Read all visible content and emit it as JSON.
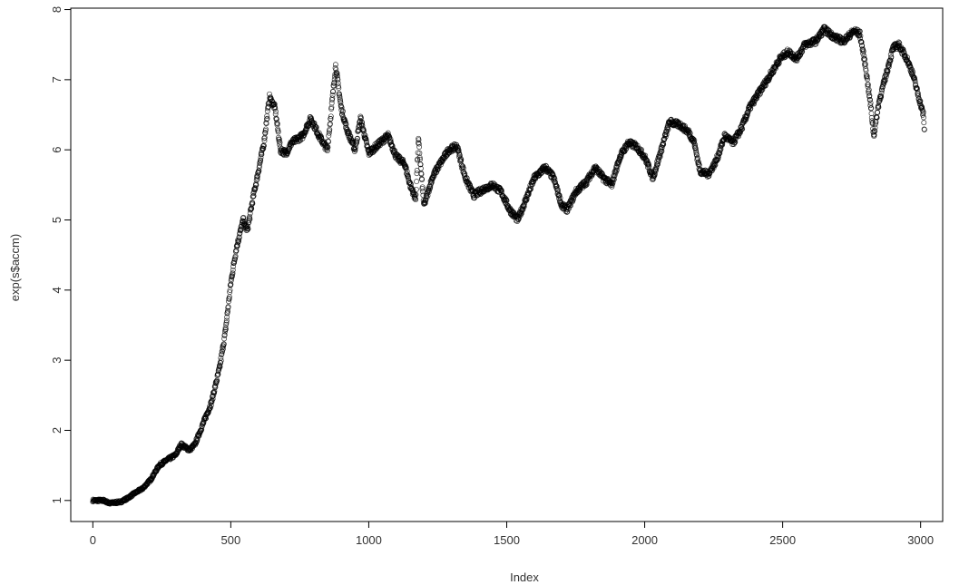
{
  "chart_data": {
    "type": "scatter",
    "xlabel": "Index",
    "ylabel": "exp(s$accm)",
    "xlim": [
      -80,
      3080
    ],
    "ylim": [
      0.7,
      8.02
    ],
    "x_ticks": [
      0,
      500,
      1000,
      1500,
      2000,
      2500,
      3000
    ],
    "x_tick_labels": [
      "0",
      "500",
      "1000",
      "1500",
      "2000",
      "2500",
      "3000"
    ],
    "y_ticks": [
      1,
      2,
      3,
      4,
      5,
      6,
      7,
      8
    ],
    "y_tick_labels": [
      "1",
      "2",
      "3",
      "4",
      "5",
      "6",
      "7",
      "8"
    ],
    "marker": "open-circle",
    "grid": false,
    "n_points": 3015,
    "series": [
      {
        "values": [
          [
            0,
            1.0
          ],
          [
            40,
            1.0
          ],
          [
            60,
            0.96
          ],
          [
            100,
            0.98
          ],
          [
            125,
            1.03
          ],
          [
            150,
            1.1
          ],
          [
            180,
            1.17
          ],
          [
            210,
            1.3
          ],
          [
            240,
            1.5
          ],
          [
            270,
            1.58
          ],
          [
            300,
            1.65
          ],
          [
            320,
            1.8
          ],
          [
            350,
            1.72
          ],
          [
            370,
            1.8
          ],
          [
            400,
            2.1
          ],
          [
            430,
            2.4
          ],
          [
            460,
            2.9
          ],
          [
            480,
            3.4
          ],
          [
            500,
            4.1
          ],
          [
            520,
            4.6
          ],
          [
            545,
            5.0
          ],
          [
            560,
            4.85
          ],
          [
            580,
            5.3
          ],
          [
            600,
            5.7
          ],
          [
            620,
            6.1
          ],
          [
            640,
            6.75
          ],
          [
            660,
            6.6
          ],
          [
            680,
            6.0
          ],
          [
            700,
            5.95
          ],
          [
            720,
            6.1
          ],
          [
            760,
            6.2
          ],
          [
            790,
            6.45
          ],
          [
            820,
            6.2
          ],
          [
            850,
            6.0
          ],
          [
            870,
            6.8
          ],
          [
            880,
            7.2
          ],
          [
            900,
            6.6
          ],
          [
            920,
            6.3
          ],
          [
            950,
            6.0
          ],
          [
            970,
            6.45
          ],
          [
            1000,
            5.95
          ],
          [
            1040,
            6.1
          ],
          [
            1070,
            6.2
          ],
          [
            1100,
            5.9
          ],
          [
            1130,
            5.8
          ],
          [
            1150,
            5.5
          ],
          [
            1170,
            5.3
          ],
          [
            1180,
            6.15
          ],
          [
            1200,
            5.2
          ],
          [
            1230,
            5.6
          ],
          [
            1250,
            5.75
          ],
          [
            1290,
            6.0
          ],
          [
            1320,
            6.05
          ],
          [
            1350,
            5.6
          ],
          [
            1380,
            5.35
          ],
          [
            1420,
            5.45
          ],
          [
            1450,
            5.5
          ],
          [
            1480,
            5.4
          ],
          [
            1510,
            5.15
          ],
          [
            1540,
            5.0
          ],
          [
            1570,
            5.3
          ],
          [
            1600,
            5.6
          ],
          [
            1640,
            5.75
          ],
          [
            1670,
            5.6
          ],
          [
            1700,
            5.2
          ],
          [
            1720,
            5.15
          ],
          [
            1750,
            5.4
          ],
          [
            1790,
            5.55
          ],
          [
            1820,
            5.75
          ],
          [
            1850,
            5.6
          ],
          [
            1880,
            5.5
          ],
          [
            1910,
            5.9
          ],
          [
            1940,
            6.1
          ],
          [
            1970,
            6.05
          ],
          [
            2000,
            5.9
          ],
          [
            2030,
            5.6
          ],
          [
            2060,
            6.0
          ],
          [
            2090,
            6.4
          ],
          [
            2130,
            6.35
          ],
          [
            2160,
            6.25
          ],
          [
            2180,
            6.1
          ],
          [
            2200,
            5.7
          ],
          [
            2230,
            5.65
          ],
          [
            2260,
            5.85
          ],
          [
            2290,
            6.2
          ],
          [
            2320,
            6.1
          ],
          [
            2350,
            6.3
          ],
          [
            2380,
            6.6
          ],
          [
            2420,
            6.85
          ],
          [
            2460,
            7.1
          ],
          [
            2490,
            7.3
          ],
          [
            2520,
            7.4
          ],
          [
            2550,
            7.3
          ],
          [
            2580,
            7.5
          ],
          [
            2620,
            7.55
          ],
          [
            2650,
            7.72
          ],
          [
            2690,
            7.6
          ],
          [
            2720,
            7.55
          ],
          [
            2760,
            7.7
          ],
          [
            2780,
            7.65
          ],
          [
            2800,
            7.2
          ],
          [
            2820,
            6.6
          ],
          [
            2830,
            6.2
          ],
          [
            2850,
            6.7
          ],
          [
            2870,
            7.0
          ],
          [
            2900,
            7.45
          ],
          [
            2920,
            7.5
          ],
          [
            2950,
            7.3
          ],
          [
            2970,
            7.1
          ],
          [
            2990,
            6.8
          ],
          [
            3010,
            6.5
          ],
          [
            3015,
            6.2
          ]
        ]
      }
    ]
  }
}
